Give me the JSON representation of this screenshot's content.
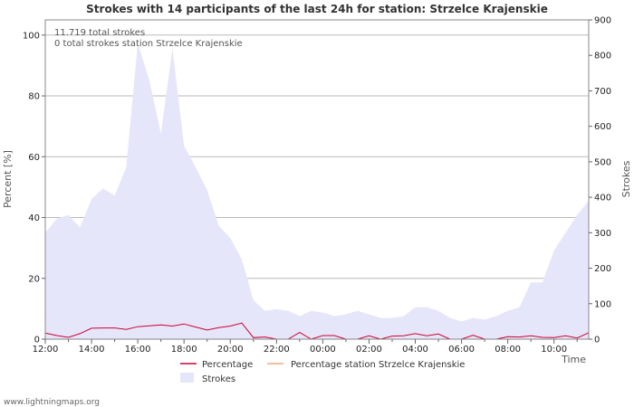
{
  "chart_data": {
    "type": "area",
    "title": "Strokes with 14 participants of the last 24h for station: Strzelce Krajenskie",
    "notes": [
      "11.719 total strokes",
      "0 total strokes station Strzelce Krajenskie"
    ],
    "xlabel": "Time",
    "ylabel_left": "Percent   [%]",
    "ylabel_right": "Strokes",
    "x_tick_labels": [
      "12:00",
      "14:00",
      "16:00",
      "18:00",
      "20:00",
      "22:00",
      "00:00",
      "02:00",
      "04:00",
      "06:00",
      "08:00",
      "10:00"
    ],
    "y_left_ticks": [
      0,
      20,
      40,
      60,
      80,
      100
    ],
    "y_right_ticks": [
      0,
      100,
      200,
      300,
      400,
      500,
      600,
      700,
      800,
      900
    ],
    "ylim_left": [
      0,
      105
    ],
    "ylim_right": [
      0,
      900
    ],
    "x_range_hours": [
      0,
      23.5
    ],
    "x_hours": [
      0,
      0.5,
      1,
      1.5,
      2,
      2.5,
      3,
      3.5,
      4,
      4.5,
      5,
      5.5,
      6,
      6.5,
      7,
      7.5,
      8,
      8.5,
      9,
      9.5,
      10,
      10.5,
      11,
      11.5,
      12,
      12.5,
      13,
      13.5,
      14,
      14.5,
      15,
      15.5,
      16,
      16.5,
      17,
      17.5,
      18,
      18.5,
      19,
      19.5,
      20,
      20.5,
      21,
      21.5,
      22,
      22.5,
      23,
      23.5
    ],
    "series": [
      {
        "name": "Strokes",
        "axis": "right",
        "color": "#e6e6fa",
        "values": [
          300,
          340,
          350,
          315,
          395,
          425,
          405,
          485,
          835,
          730,
          580,
          820,
          545,
          485,
          420,
          320,
          285,
          225,
          110,
          80,
          85,
          80,
          65,
          80,
          75,
          65,
          70,
          80,
          70,
          60,
          60,
          65,
          90,
          90,
          80,
          60,
          50,
          60,
          55,
          65,
          80,
          90,
          160,
          160,
          250,
          300,
          350,
          390
        ]
      },
      {
        "name": "Percentage",
        "axis": "left",
        "color": "#cc0033",
        "values": [
          2,
          1.2,
          0.6,
          1.8,
          3.6,
          3.7,
          3.7,
          3.2,
          4.1,
          4.4,
          4.7,
          4.3,
          5,
          4,
          3,
          3.8,
          4.3,
          5.3,
          0.5,
          0.7,
          0,
          0,
          2.2,
          0,
          1.2,
          1.2,
          0,
          0,
          1.1,
          0,
          1,
          1.1,
          1.8,
          1.1,
          1.7,
          0,
          0,
          1.3,
          0,
          0,
          0.8,
          0.7,
          1.1,
          0.6,
          0.5,
          1.1,
          0.4,
          2.1
        ]
      },
      {
        "name": "Percentage station Strzelce Krajenskie",
        "axis": "left",
        "color": "#f4a582",
        "values": [
          0,
          0,
          0,
          0,
          0,
          0,
          0,
          0,
          0,
          0,
          0,
          0,
          0,
          0,
          0,
          0,
          0,
          0,
          0,
          0,
          0,
          0,
          0,
          0,
          0,
          0,
          0,
          0,
          0,
          0,
          0,
          0,
          0,
          0,
          0,
          0,
          0,
          0,
          0,
          0,
          0,
          0,
          0,
          0,
          0,
          0,
          0,
          0
        ]
      }
    ],
    "legend": [
      "Percentage",
      "Percentage station Strzelce Krajenskie",
      "Strokes"
    ]
  },
  "footer": "www.lightningmaps.org"
}
